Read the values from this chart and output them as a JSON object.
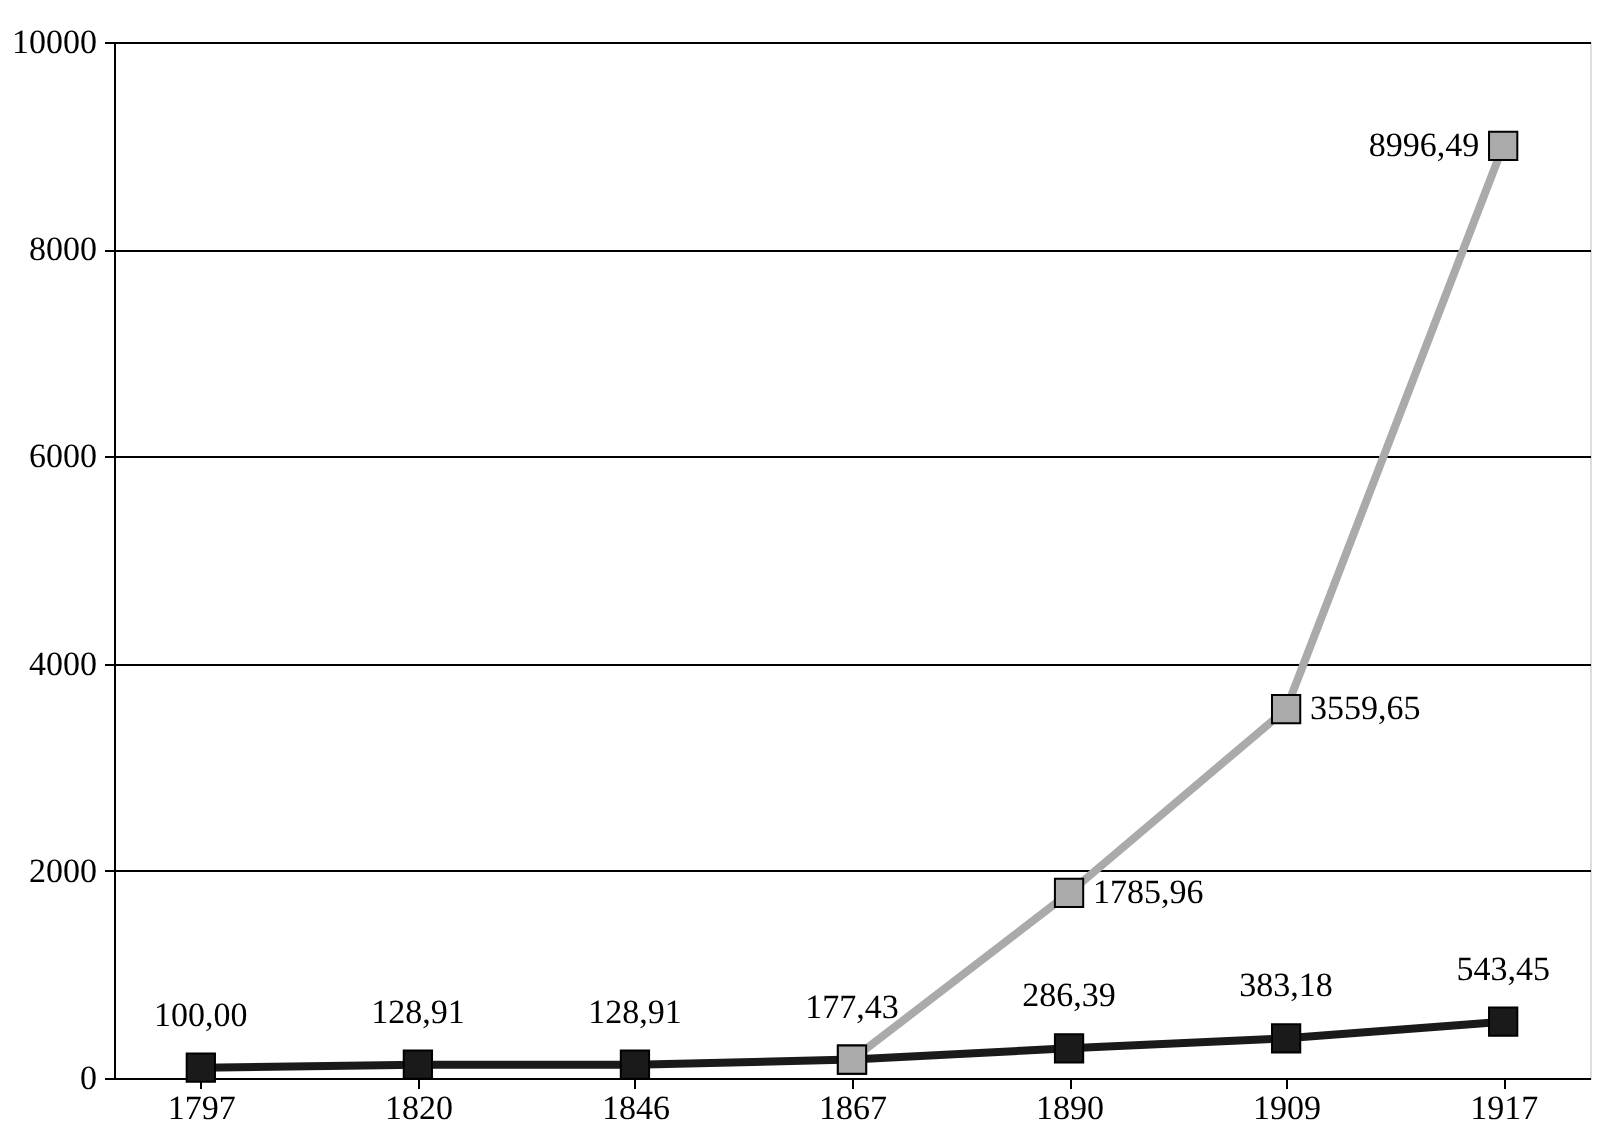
{
  "chart_data": {
    "type": "line",
    "categories": [
      "1797",
      "1820",
      "1846",
      "1867",
      "1890",
      "1909",
      "1917"
    ],
    "series": [
      {
        "color": "#1a1a1a",
        "values": [
          100,
          128.91,
          128.91,
          177.43,
          286.39,
          383.18,
          543.45
        ],
        "value_labels": [
          "100,00",
          "128,91",
          "128,91",
          "177,43",
          "286,39",
          "383,18",
          "543,45"
        ]
      },
      {
        "color": "#aaaaaa",
        "values": [
          null,
          null,
          null,
          177,
          1785.96,
          3559.65,
          8996.49
        ],
        "value_labels": [
          null,
          null,
          null,
          null,
          "1785,96",
          "3559,65",
          "8996,49"
        ]
      }
    ],
    "ylim": [
      0,
      10000
    ],
    "yticks": [
      0,
      2000,
      4000,
      6000,
      8000,
      10000
    ],
    "grid": "y",
    "marker": "square",
    "line_style": "solid"
  }
}
